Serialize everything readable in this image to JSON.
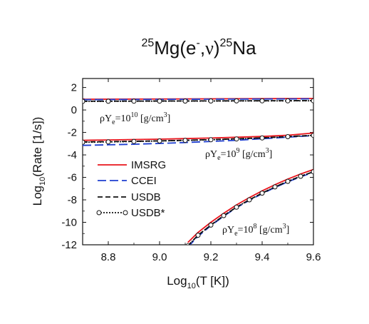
{
  "chart_data": {
    "type": "line",
    "title": {
      "mass_a": "25",
      "nucleus_a": "Mg",
      "open": "(e",
      "charge": "-",
      "mid": ",",
      "nu": "ν",
      "close": ")",
      "mass_b": "25",
      "nucleus_b": "Na"
    },
    "xlabel": {
      "pre": "Log",
      "sub": "10",
      "post": "(T [K])"
    },
    "ylabel": {
      "pre": "Log",
      "sub": "10",
      "post": "(Rate [1/s])"
    },
    "xlim": [
      8.7,
      9.6
    ],
    "ylim": [
      -12,
      2.8
    ],
    "x_ticks": [
      "8.8",
      "9.0",
      "9.2",
      "9.4",
      "9.6"
    ],
    "y_ticks": [
      "2",
      "0",
      "-2",
      "-4",
      "-6",
      "-8",
      "-10",
      "-12"
    ],
    "legend_position": "left",
    "annotations": [
      {
        "rho": "ρY",
        "e": "e",
        "eq": "=10",
        "exp": "10",
        "unit": " [g/cm",
        "unit_exp": "3",
        "unit_close": "]"
      },
      {
        "rho": "ρY",
        "e": "e",
        "eq": "=10",
        "exp": "9",
        "unit": " [g/cm",
        "unit_exp": "3",
        "unit_close": "]"
      },
      {
        "rho": "ρY",
        "e": "e",
        "eq": "=10",
        "exp": "8",
        "unit": " [g/cm",
        "unit_exp": "3",
        "unit_close": "]"
      }
    ],
    "series_styles": [
      {
        "name": "IMSRG",
        "color": "#e8141c",
        "dash": "none",
        "markers": false
      },
      {
        "name": "CCEI",
        "color": "#1f3fd0",
        "dash": "12,5",
        "markers": false
      },
      {
        "name": "USDB",
        "color": "#111111",
        "dash": "7,4",
        "markers": false
      },
      {
        "name": "USDB*",
        "color": "#111111",
        "dash": "2,2",
        "markers": true
      }
    ],
    "density_groups": [
      {
        "density_exponent": 10,
        "x": [
          8.7,
          9.6
        ],
        "IMSRG": [
          0.95,
          1.02
        ],
        "CCEI": [
          0.92,
          0.99
        ],
        "USDB": [
          0.78,
          0.83
        ],
        "USDB*": [
          0.77,
          0.82
        ]
      },
      {
        "density_exponent": 9,
        "x": [
          8.7,
          8.8,
          8.9,
          9.0,
          9.1,
          9.2,
          9.3,
          9.4,
          9.5,
          9.6
        ],
        "IMSRG": [
          -2.7,
          -2.67,
          -2.63,
          -2.6,
          -2.55,
          -2.5,
          -2.43,
          -2.36,
          -2.25,
          -2.05
        ],
        "CCEI": [
          -3.15,
          -3.1,
          -3.05,
          -2.98,
          -2.9,
          -2.8,
          -2.7,
          -2.56,
          -2.42,
          -2.28
        ],
        "USDB": [
          -2.85,
          -2.82,
          -2.79,
          -2.75,
          -2.7,
          -2.64,
          -2.57,
          -2.48,
          -2.37,
          -2.25
        ],
        "USDB*": [
          -2.87,
          -2.84,
          -2.8,
          -2.76,
          -2.71,
          -2.65,
          -2.58,
          -2.49,
          -2.38,
          -2.26
        ]
      },
      {
        "density_exponent": 8,
        "x": [
          9.11,
          9.15,
          9.2,
          9.25,
          9.3,
          9.35,
          9.4,
          9.45,
          9.5,
          9.55,
          9.6
        ],
        "IMSRG": [
          -11.8,
          -10.9,
          -10.0,
          -9.2,
          -8.45,
          -7.8,
          -7.2,
          -6.65,
          -6.15,
          -5.7,
          -5.3
        ],
        "CCEI": [
          -12.2,
          -11.25,
          -10.3,
          -9.45,
          -8.7,
          -8.05,
          -7.45,
          -6.9,
          -6.4,
          -5.95,
          -5.55
        ],
        "USDB": [
          -12.1,
          -11.15,
          -10.25,
          -9.4,
          -8.65,
          -8.0,
          -7.4,
          -6.85,
          -6.35,
          -5.9,
          -5.5
        ],
        "USDB*": [
          -12.1,
          -11.15,
          -10.25,
          -9.4,
          -8.65,
          -8.0,
          -7.4,
          -6.85,
          -6.35,
          -5.9,
          -5.5
        ]
      }
    ]
  }
}
